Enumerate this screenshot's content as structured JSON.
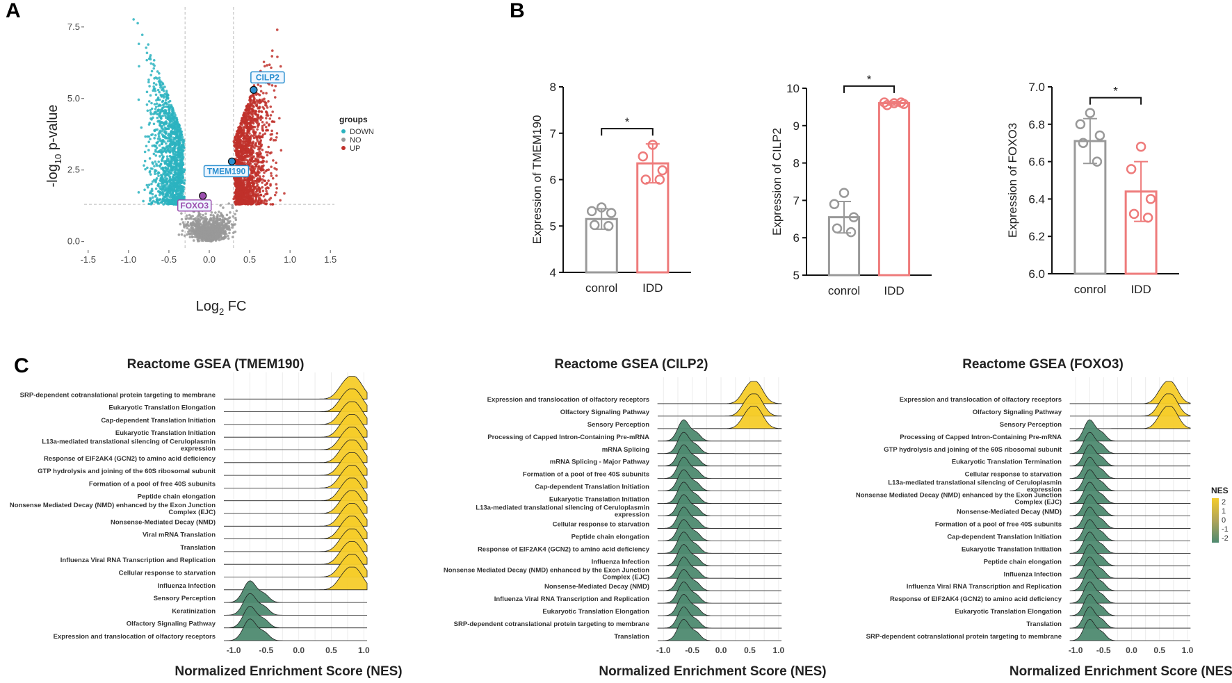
{
  "panels": {
    "a": "A",
    "b": "B",
    "c": "C"
  },
  "chart_data": [
    {
      "id": "volcano",
      "type": "scatter",
      "xlabel_main": "Log",
      "xlabel_sub": "2",
      "xlabel_tail": " FC",
      "ylabel_pre": "-log",
      "ylabel_sub": "10",
      "ylabel_tail": " p-value",
      "xlim": [
        -1.55,
        1.55
      ],
      "ylim": [
        -0.3,
        8.2
      ],
      "xticks": [
        "-1.5",
        "-1.0",
        "-0.5",
        "0.0",
        "0.5",
        "1.0",
        "1.5"
      ],
      "yticks": [
        "0.0",
        "2.5",
        "5.0",
        "7.5"
      ],
      "fc_threshold": [
        -0.3,
        0.3
      ],
      "p_threshold": 1.3,
      "legend": {
        "title": "groups",
        "items": [
          "DOWN",
          "NO",
          "UP"
        ]
      },
      "colors": {
        "DOWN": "#2bb3bf",
        "NO": "#999999",
        "UP": "#c0302a"
      },
      "highlight_genes": [
        {
          "name": "CILP2",
          "x": 0.55,
          "y": 5.3,
          "color": "#2a8fd0"
        },
        {
          "name": "TMEM190",
          "x": 0.28,
          "y": 2.8,
          "color": "#2a8fd0"
        },
        {
          "name": "FOXO3",
          "x": -0.08,
          "y": 1.6,
          "color": "#9b4fae"
        }
      ]
    },
    {
      "id": "bar-tmem190",
      "type": "bar",
      "categories": [
        "conrol",
        "IDD"
      ],
      "values": [
        5.15,
        6.35
      ],
      "errors": [
        0.22,
        0.42
      ],
      "points": [
        [
          5.4,
          5.32,
          5.28,
          5.02,
          5.0
        ],
        [
          6.75,
          6.5,
          6.2,
          6.0,
          6.0
        ]
      ],
      "ylabel": "Expression of TMEM190",
      "ylim": [
        4,
        8
      ],
      "yticks": [
        "4",
        "5",
        "6",
        "7",
        "8"
      ],
      "significance": "*",
      "colors": [
        "#999999",
        "#ee7b7b"
      ]
    },
    {
      "id": "bar-cilp2",
      "type": "bar",
      "categories": [
        "conrol",
        "IDD"
      ],
      "values": [
        6.55,
        9.6
      ],
      "errors": [
        0.42,
        0.05
      ],
      "points": [
        [
          7.2,
          6.9,
          6.55,
          6.25,
          6.15
        ],
        [
          9.6,
          9.62,
          9.58,
          9.55,
          9.62
        ]
      ],
      "ylabel": "Expression of CILP2",
      "ylim": [
        5,
        10
      ],
      "yticks": [
        "5",
        "6",
        "7",
        "8",
        "9",
        "10"
      ],
      "significance": "*",
      "colors": [
        "#999999",
        "#ee7b7b"
      ]
    },
    {
      "id": "bar-foxo3",
      "type": "bar",
      "categories": [
        "conrol",
        "IDD"
      ],
      "values": [
        6.71,
        6.44
      ],
      "errors": [
        0.12,
        0.16
      ],
      "points": [
        [
          6.86,
          6.8,
          6.74,
          6.7,
          6.6
        ],
        [
          6.68,
          6.56,
          6.4,
          6.32,
          6.3
        ]
      ],
      "ylabel": "Expression of FOXO3",
      "ylim": [
        6.0,
        7.0
      ],
      "yticks": [
        "6.0",
        "6.2",
        "6.4",
        "6.6",
        "6.8",
        "7.0"
      ],
      "significance": "*",
      "colors": [
        "#999999",
        "#ee7b7b"
      ]
    },
    {
      "id": "gsea-tmem190",
      "type": "area",
      "title": "Reactome GSEA (TMEM190)",
      "xlabel": "Normalized Enrichment Score (NES)",
      "xlim": [
        -1.15,
        1.05
      ],
      "xticks": [
        "-1.0",
        "-0.5",
        "0.0",
        "0.5",
        "1.0"
      ],
      "pathways": [
        {
          "label": "SRP-dependent cotranslational protein targeting to membrane",
          "mode": 0.85,
          "nes": 2
        },
        {
          "label": "Eukaryotic Translation Elongation",
          "mode": 0.85,
          "nes": 2
        },
        {
          "label": "Cap-dependent Translation Initiation",
          "mode": 0.85,
          "nes": 2
        },
        {
          "label": "Eukaryotic Translation Initiation",
          "mode": 0.85,
          "nes": 2
        },
        {
          "label": "L13a-mediated translational silencing of Ceruloplasmin expression",
          "mode": 0.85,
          "nes": 2
        },
        {
          "label": "Response of EIF2AK4 (GCN2) to amino acid deficiency",
          "mode": 0.85,
          "nes": 2
        },
        {
          "label": "GTP hydrolysis and joining of the 60S ribosomal subunit",
          "mode": 0.85,
          "nes": 2
        },
        {
          "label": "Formation of a pool of free 40S subunits",
          "mode": 0.85,
          "nes": 2
        },
        {
          "label": "Peptide chain elongation",
          "mode": 0.85,
          "nes": 2
        },
        {
          "label": "Nonsense Mediated Decay (NMD) enhanced by the Exon Junction Complex (EJC)",
          "mode": 0.85,
          "nes": 2
        },
        {
          "label": "Nonsense-Mediated Decay (NMD)",
          "mode": 0.85,
          "nes": 2
        },
        {
          "label": "Viral mRNA Translation",
          "mode": 0.85,
          "nes": 2
        },
        {
          "label": "Translation",
          "mode": 0.85,
          "nes": 2
        },
        {
          "label": "Influenza Viral RNA Transcription and Replication",
          "mode": 0.85,
          "nes": 2
        },
        {
          "label": "Cellular response to starvation",
          "mode": 0.85,
          "nes": 2
        },
        {
          "label": "Influenza Infection",
          "mode": 0.85,
          "nes": 2
        },
        {
          "label": "Sensory Perception",
          "mode": -0.75,
          "nes": -2
        },
        {
          "label": "Keratinization",
          "mode": -0.75,
          "nes": -2
        },
        {
          "label": "Olfactory Signaling Pathway",
          "mode": -0.75,
          "nes": -2
        },
        {
          "label": "Expression and translocation of olfactory receptors",
          "mode": -0.75,
          "nes": -2
        }
      ]
    },
    {
      "id": "gsea-cilp2",
      "type": "area",
      "title": "Reactome GSEA (CILP2)",
      "xlabel": "Normalized Enrichment Score (NES)",
      "xlim": [
        -1.1,
        1.05
      ],
      "xticks": [
        "-1.0",
        "-0.5",
        "0.0",
        "0.5",
        "1.0"
      ],
      "pathways": [
        {
          "label": "Expression and translocation of olfactory receptors",
          "mode": 0.6,
          "nes": 2
        },
        {
          "label": "Olfactory Signaling Pathway",
          "mode": 0.6,
          "nes": 2
        },
        {
          "label": "Sensory Perception",
          "mode": 0.6,
          "nes": 2
        },
        {
          "label": "Processing of Capped Intron-Containing Pre-mRNA",
          "mode": -0.65,
          "nes": -2
        },
        {
          "label": "mRNA Splicing",
          "mode": -0.65,
          "nes": -2
        },
        {
          "label": "mRNA Splicing - Major Pathway",
          "mode": -0.65,
          "nes": -2
        },
        {
          "label": "Formation of a pool of free 40S subunits",
          "mode": -0.65,
          "nes": -2
        },
        {
          "label": "Cap-dependent Translation Initiation",
          "mode": -0.65,
          "nes": -2
        },
        {
          "label": "Eukaryotic Translation Initiation",
          "mode": -0.65,
          "nes": -2
        },
        {
          "label": "L13a-mediated translational silencing of Ceruloplasmin expression",
          "mode": -0.65,
          "nes": -2
        },
        {
          "label": "Cellular response to starvation",
          "mode": -0.65,
          "nes": -2
        },
        {
          "label": "Peptide chain elongation",
          "mode": -0.65,
          "nes": -2
        },
        {
          "label": "Response of EIF2AK4 (GCN2) to amino acid deficiency",
          "mode": -0.65,
          "nes": -2
        },
        {
          "label": "Influenza Infection",
          "mode": -0.65,
          "nes": -2
        },
        {
          "label": "Nonsense Mediated Decay (NMD) enhanced by the Exon Junction Complex (EJC)",
          "mode": -0.65,
          "nes": -2
        },
        {
          "label": "Nonsense-Mediated Decay (NMD)",
          "mode": -0.65,
          "nes": -2
        },
        {
          "label": "Influenza Viral RNA Transcription and Replication",
          "mode": -0.65,
          "nes": -2
        },
        {
          "label": "Eukaryotic Translation Elongation",
          "mode": -0.65,
          "nes": -2
        },
        {
          "label": "SRP-dependent cotranslational protein targeting to membrane",
          "mode": -0.65,
          "nes": -2
        },
        {
          "label": "Translation",
          "mode": -0.65,
          "nes": -2
        }
      ]
    },
    {
      "id": "gsea-foxo3",
      "type": "area",
      "title": "Reactome GSEA (FOXO3)",
      "xlabel": "Normalized Enrichment Score (NES)",
      "xlim": [
        -1.1,
        1.05
      ],
      "xticks": [
        "-1.0",
        "-0.5",
        "0.0",
        "0.5",
        "1.0"
      ],
      "legend": {
        "title": "NES",
        "ticks": [
          "2",
          "1",
          "0",
          "-1",
          "-2"
        ]
      },
      "pathways": [
        {
          "label": "Expression and translocation of olfactory receptors",
          "mode": 0.7,
          "nes": 2
        },
        {
          "label": "Olfactory Signaling Pathway",
          "mode": 0.7,
          "nes": 2
        },
        {
          "label": "Sensory Perception",
          "mode": 0.7,
          "nes": 2
        },
        {
          "label": "Processing of Capped Intron-Containing Pre-mRNA",
          "mode": -0.75,
          "nes": -2
        },
        {
          "label": "GTP hydrolysis and joining of the 60S ribosomal subunit",
          "mode": -0.75,
          "nes": -2
        },
        {
          "label": "Eukaryotic Translation Termination",
          "mode": -0.75,
          "nes": -2
        },
        {
          "label": "Cellular response to starvation",
          "mode": -0.75,
          "nes": -2
        },
        {
          "label": "L13a-mediated translational silencing of Ceruloplasmin expression",
          "mode": -0.75,
          "nes": -2
        },
        {
          "label": "Nonsense Mediated Decay (NMD) enhanced by the Exon Junction Complex (EJC)",
          "mode": -0.75,
          "nes": -2
        },
        {
          "label": "Nonsense-Mediated Decay (NMD)",
          "mode": -0.75,
          "nes": -2
        },
        {
          "label": "Formation of a pool of free 40S subunits",
          "mode": -0.75,
          "nes": -2
        },
        {
          "label": "Cap-dependent Translation Initiation",
          "mode": -0.75,
          "nes": -2
        },
        {
          "label": "Eukaryotic Translation Initiation",
          "mode": -0.75,
          "nes": -2
        },
        {
          "label": "Peptide chain elongation",
          "mode": -0.75,
          "nes": -2
        },
        {
          "label": "Influenza Infection",
          "mode": -0.75,
          "nes": -2
        },
        {
          "label": "Influenza Viral RNA Transcription and Replication",
          "mode": -0.75,
          "nes": -2
        },
        {
          "label": "Response of EIF2AK4 (GCN2) to amino acid deficiency",
          "mode": -0.75,
          "nes": -2
        },
        {
          "label": "Eukaryotic Translation Elongation",
          "mode": -0.75,
          "nes": -2
        },
        {
          "label": "Translation",
          "mode": -0.75,
          "nes": -2
        },
        {
          "label": "SRP-dependent cotranslational protein targeting to membrane",
          "mode": -0.75,
          "nes": -2
        }
      ]
    }
  ]
}
